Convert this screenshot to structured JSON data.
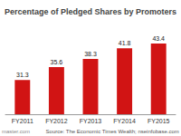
{
  "chart_data": {
    "type": "bar",
    "title": "Percentage of Pledged Shares by Promoters",
    "categories": [
      "FY2011",
      "FY2012",
      "FY2013",
      "FY2014",
      "FY2015"
    ],
    "values": [
      31.3,
      35.6,
      38.3,
      41.8,
      43.4
    ],
    "color": "#d11414",
    "ylim": [
      20,
      50
    ],
    "yticks": [
      20,
      30,
      40,
      50
    ],
    "grid": false,
    "data_labels": true,
    "tick_labels": "x",
    "annotations": [
      "master.com",
      "Source: The Economic Times Wealth; nseinfobase.com"
    ]
  }
}
